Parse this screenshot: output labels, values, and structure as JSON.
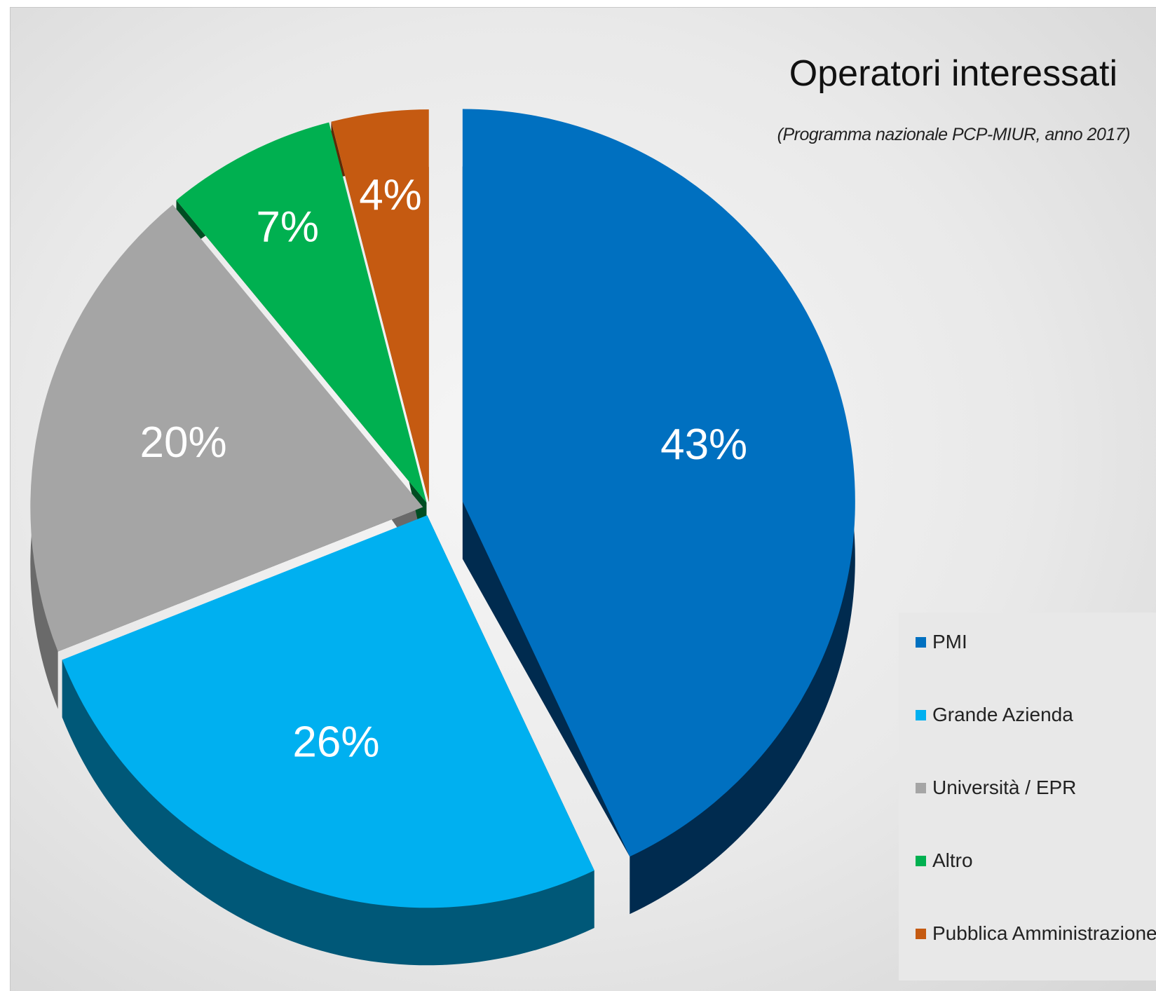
{
  "chart_data": {
    "type": "pie",
    "title": "Operatori interessati",
    "subtitle": "(Programma nazionale PCP-MIUR, anno 2017)",
    "legend_position": "right",
    "slices": [
      {
        "name": "PMI",
        "value": 43,
        "label": "43%",
        "color": "#0070c0",
        "side_color": "#002b4f",
        "exploded": true
      },
      {
        "name": "Grande Azienda",
        "value": 26,
        "label": "26%",
        "color": "#00b0f0",
        "side_color": "#005878"
      },
      {
        "name": "Università / EPR",
        "value": 20,
        "label": "20%",
        "color": "#a5a5a5",
        "side_color": "#6a6a6a"
      },
      {
        "name": "Altro",
        "value": 7,
        "label": "7%",
        "color": "#00b050",
        "side_color": "#004d22"
      },
      {
        "name": "Pubblica Amministrazione",
        "value": 4,
        "label": "4%",
        "color": "#c55a11",
        "side_color": "#5e2a06"
      }
    ]
  }
}
